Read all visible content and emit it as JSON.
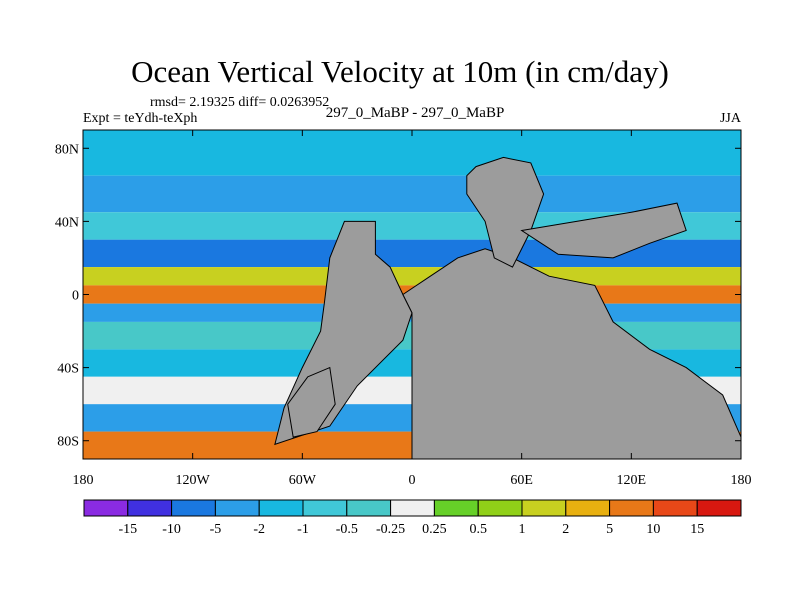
{
  "title": "Ocean Vertical Velocity at 10m (in cm/day)",
  "stats": "rmsd= 2.19325 diff= 0.0263952",
  "experiment": "Expt = teYdh-teXph",
  "center_label": "297_0_MaBP - 297_0_MaBP",
  "season": "JJA",
  "map": {
    "lon_range": [
      -180,
      180
    ],
    "lat_range": [
      -90,
      90
    ],
    "land_color": "#9c9c9c",
    "y_ticks": [
      {
        "lat": 80,
        "label": "80N"
      },
      {
        "lat": 40,
        "label": "40N"
      },
      {
        "lat": 0,
        "label": "0"
      },
      {
        "lat": -40,
        "label": "40S"
      },
      {
        "lat": -80,
        "label": "80S"
      }
    ],
    "x_ticks": [
      {
        "lon": -180,
        "label": "180"
      },
      {
        "lon": -120,
        "label": "120W"
      },
      {
        "lon": -60,
        "label": "60W"
      },
      {
        "lon": 0,
        "label": "0"
      },
      {
        "lon": 60,
        "label": "60E"
      },
      {
        "lon": 120,
        "label": "120E"
      },
      {
        "lon": 180,
        "label": "180"
      }
    ],
    "bands": [
      {
        "lat": [
          65,
          90
        ],
        "color": "#18b8e0"
      },
      {
        "lat": [
          45,
          65
        ],
        "color": "#2c9ee8"
      },
      {
        "lat": [
          30,
          45
        ],
        "color": "#40c8d8"
      },
      {
        "lat": [
          15,
          30
        ],
        "color": "#1a78e0"
      },
      {
        "lat": [
          5,
          15
        ],
        "color": "#c8d020"
      },
      {
        "lat": [
          -5,
          5
        ],
        "color": "#e87818"
      },
      {
        "lat": [
          -15,
          -5
        ],
        "color": "#2c9ee8"
      },
      {
        "lat": [
          -30,
          -15
        ],
        "color": "#48c8c8"
      },
      {
        "lat": [
          -45,
          -30
        ],
        "color": "#18b8e0"
      },
      {
        "lat": [
          -60,
          -45
        ],
        "color": "#f0f0f0"
      },
      {
        "lat": [
          -75,
          -60
        ],
        "color": "#2c9ee8"
      },
      {
        "lat": [
          -90,
          -75
        ],
        "color": "#e87818"
      }
    ],
    "continents": [
      {
        "name": "supercontinent-west",
        "points": [
          [
            -37,
            40
          ],
          [
            -20,
            40
          ],
          [
            -20,
            22
          ],
          [
            -12,
            15
          ],
          [
            -5,
            0
          ],
          [
            0,
            -10
          ],
          [
            -5,
            -25
          ],
          [
            -30,
            -50
          ],
          [
            -45,
            -72
          ],
          [
            -75,
            -82
          ],
          [
            -70,
            -62
          ],
          [
            -60,
            -40
          ],
          [
            -50,
            -20
          ],
          [
            -48,
            -5
          ],
          [
            -45,
            20
          ]
        ]
      },
      {
        "name": "supercontinent-east",
        "points": [
          [
            -5,
            0
          ],
          [
            10,
            10
          ],
          [
            25,
            20
          ],
          [
            40,
            25
          ],
          [
            55,
            20
          ],
          [
            75,
            10
          ],
          [
            100,
            5
          ],
          [
            110,
            -15
          ],
          [
            130,
            -30
          ],
          [
            150,
            -40
          ],
          [
            170,
            -55
          ],
          [
            180,
            -78
          ],
          [
            180,
            -90
          ],
          [
            0,
            -90
          ],
          [
            0,
            -10
          ]
        ]
      },
      {
        "name": "northern-landmass",
        "points": [
          [
            30,
            65
          ],
          [
            35,
            70
          ],
          [
            50,
            75
          ],
          [
            65,
            72
          ],
          [
            72,
            55
          ],
          [
            65,
            35
          ],
          [
            55,
            15
          ],
          [
            45,
            20
          ],
          [
            40,
            40
          ],
          [
            30,
            55
          ]
        ]
      },
      {
        "name": "asia-east",
        "points": [
          [
            60,
            35
          ],
          [
            90,
            40
          ],
          [
            120,
            45
          ],
          [
            145,
            50
          ],
          [
            150,
            35
          ],
          [
            130,
            28
          ],
          [
            110,
            20
          ],
          [
            80,
            22
          ]
        ]
      },
      {
        "name": "southern-islands",
        "points": [
          [
            -57,
            -45
          ],
          [
            -45,
            -40
          ],
          [
            -42,
            -60
          ],
          [
            -52,
            -75
          ],
          [
            -65,
            -78
          ],
          [
            -68,
            -60
          ]
        ]
      }
    ]
  },
  "colorbar": {
    "labels": [
      "-15",
      "-10",
      "-5",
      "-2",
      "-1",
      "-0.5",
      "-0.25",
      "0.25",
      "0.5",
      "1",
      "2",
      "5",
      "10",
      "15"
    ],
    "colors": [
      "#8a2be2",
      "#4030e0",
      "#1a78e0",
      "#2c9ee8",
      "#18b8e0",
      "#40c8d8",
      "#48c8c8",
      "#f0f0f0",
      "#66d028",
      "#90d018",
      "#c8d020",
      "#e8b010",
      "#e87818",
      "#e84818",
      "#d81810"
    ]
  }
}
